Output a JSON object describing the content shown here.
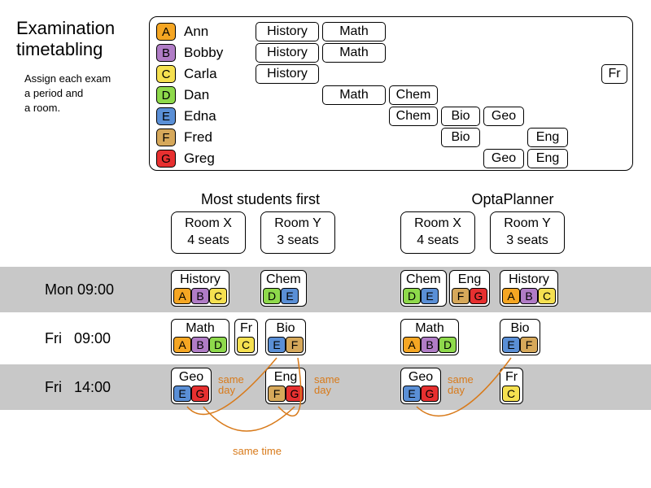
{
  "page": {
    "title_l1": "Examination",
    "title_l2": "timetabling",
    "subtitle_l1": "Assign each exam",
    "subtitle_l2": "a period and",
    "subtitle_l3": "a room."
  },
  "colors": {
    "A": "#f5a623",
    "B": "#b07cc6",
    "C": "#f5e050",
    "D": "#8ed94b",
    "E": "#5a8fd6",
    "F": "#d6a85a",
    "G": "#e73030",
    "annotation": "#d87a1a",
    "row_bg": "#c8c8c8"
  },
  "students": [
    {
      "letter": "A",
      "name": "Ann",
      "subjects": [
        "History",
        "Math"
      ]
    },
    {
      "letter": "B",
      "name": "Bobby",
      "subjects": [
        "History",
        "Math"
      ]
    },
    {
      "letter": "C",
      "name": "Carla",
      "subjects": [
        "History",
        "Fr"
      ]
    },
    {
      "letter": "D",
      "name": "Dan",
      "subjects": [
        "Math",
        "Chem"
      ]
    },
    {
      "letter": "E",
      "name": "Edna",
      "subjects": [
        "Chem",
        "Bio",
        "Geo"
      ]
    },
    {
      "letter": "F",
      "name": "Fred",
      "subjects": [
        "Bio",
        "Eng"
      ]
    },
    {
      "letter": "G",
      "name": "Greg",
      "subjects": [
        "Geo",
        "Eng"
      ]
    }
  ],
  "legend_fr_note": "Fr",
  "schedule_headers": {
    "left": "Most students first",
    "right": "OptaPlanner",
    "roomX_l1": "Room X",
    "roomX_l2": "4 seats",
    "roomY_l1": "Room Y",
    "roomY_l2": "3 seats"
  },
  "timeslots": {
    "t1": "Mon 09:00",
    "t2": "Fri   09:00",
    "t3": "Fri   14:00"
  },
  "left_solution": {
    "t1_roomX": {
      "subj": "History",
      "students": [
        "A",
        "B",
        "C"
      ]
    },
    "t1_roomY": {
      "subj": "Chem",
      "students": [
        "D",
        "E"
      ]
    },
    "t2_roomX_a": {
      "subj": "Math",
      "students": [
        "A",
        "B",
        "D"
      ]
    },
    "t2_roomX_b": {
      "subj": "Fr",
      "students": [
        "C"
      ]
    },
    "t2_roomY": {
      "subj": "Bio",
      "students": [
        "E",
        "F"
      ]
    },
    "t3_roomX": {
      "subj": "Geo",
      "students": [
        "E",
        "G"
      ]
    },
    "t3_roomY": {
      "subj": "Eng",
      "students": [
        "F",
        "G"
      ]
    }
  },
  "right_solution": {
    "t1_roomX_a": {
      "subj": "Chem",
      "students": [
        "D",
        "E"
      ]
    },
    "t1_roomX_b": {
      "subj": "Eng",
      "students": [
        "F",
        "G"
      ]
    },
    "t1_roomY": {
      "subj": "History",
      "students": [
        "A",
        "B",
        "C"
      ]
    },
    "t2_roomX": {
      "subj": "Math",
      "students": [
        "A",
        "B",
        "D"
      ]
    },
    "t2_roomY": {
      "subj": "Bio",
      "students": [
        "E",
        "F"
      ]
    },
    "t3_roomX": {
      "subj": "Geo",
      "students": [
        "E",
        "G"
      ]
    },
    "t3_roomY": {
      "subj": "Fr",
      "students": [
        "C"
      ]
    }
  },
  "annotations": {
    "same_day_1": "same\nday",
    "same_day_2": "same\nday",
    "same_day_3": "same\nday",
    "same_time": "same  time"
  }
}
